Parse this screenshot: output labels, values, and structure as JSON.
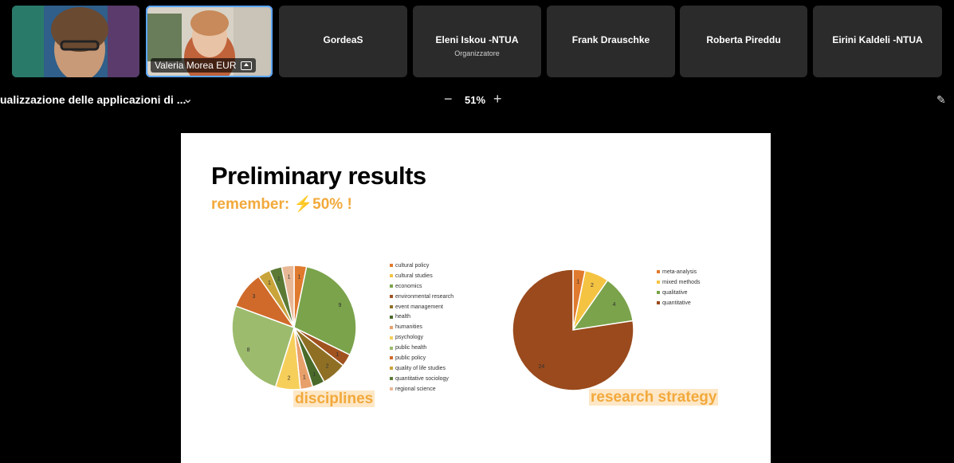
{
  "participants": [
    {
      "name": "",
      "video": true
    },
    {
      "name": "Valeria Morea EUR",
      "video": true,
      "active": true
    },
    {
      "name": "GordeaS",
      "subtitle": ""
    },
    {
      "name": "Eleni Iskou -NTUA",
      "subtitle": "Organizzatore"
    },
    {
      "name": "Frank Drauschke",
      "subtitle": ""
    },
    {
      "name": "Roberta Pireddu",
      "subtitle": ""
    },
    {
      "name": "Eirini Kaldeli -NTUA",
      "subtitle": ""
    }
  ],
  "toolbar": {
    "doc_title": "ualizzazione delle applicazioni di ...",
    "zoom": "51%",
    "minus": "−",
    "plus": "+",
    "chevron": "⌄",
    "pen_icon": "pen-icon"
  },
  "slide": {
    "title": "Preliminary results",
    "subtitle": "remember: ⚡50% !",
    "caption_left": "disciplines",
    "caption_right": "research strategy"
  },
  "chart_data": [
    {
      "type": "pie",
      "title": "disciplines",
      "categories": [
        "cultural policy",
        "cultural studies",
        "economics",
        "environmental research",
        "event management",
        "health",
        "humanities",
        "psychology",
        "public health",
        "public policy",
        "quality of life studies",
        "quantitative sociology",
        "regional science"
      ],
      "colors": [
        "#e07a2e",
        "#f5c342",
        "#7aa34b",
        "#a0521f",
        "#8f6f24",
        "#4a6a2a",
        "#e8a06a",
        "#f6cf5a",
        "#9dbb6d",
        "#d06a2a",
        "#c9a43a",
        "#5c7a35",
        "#e8b896"
      ],
      "pie_order": [
        0,
        2,
        3,
        4,
        5,
        6,
        7,
        8,
        9,
        10,
        11,
        12
      ],
      "pie_values": [
        1,
        9,
        1,
        2,
        1,
        1,
        2,
        8,
        3,
        1,
        1,
        1
      ],
      "labels_shown": [
        "1",
        "9",
        "1",
        "2",
        "1",
        "1",
        "2",
        "8",
        "3",
        "1",
        "1",
        "1"
      ]
    },
    {
      "type": "pie",
      "title": "research strategy",
      "categories": [
        "meta-analysis",
        "mixed methods",
        "qualitative",
        "quantitative"
      ],
      "values": [
        1,
        2,
        4,
        24
      ],
      "colors": [
        "#e07a2e",
        "#f5c342",
        "#7aa34b",
        "#9a4a1c"
      ]
    }
  ]
}
